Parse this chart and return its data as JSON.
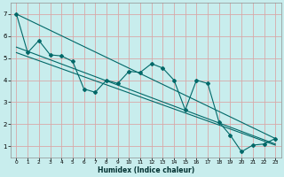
{
  "xlabel": "Humidex (Indice chaleur)",
  "bg_color": "#c8eded",
  "grid_color": "#d8a8a8",
  "line_color": "#006868",
  "marker_color": "#006868",
  "xlim": [
    -0.5,
    23.5
  ],
  "ylim": [
    0.5,
    7.5
  ],
  "yticks": [
    1,
    2,
    3,
    4,
    5,
    6,
    7
  ],
  "xticks": [
    0,
    1,
    2,
    3,
    4,
    5,
    6,
    7,
    8,
    9,
    10,
    11,
    12,
    13,
    14,
    15,
    16,
    17,
    18,
    19,
    20,
    21,
    22,
    23
  ],
  "series1_x": [
    0,
    1,
    2,
    3,
    4,
    5,
    6,
    7,
    8,
    9,
    10,
    11,
    12,
    13,
    14,
    15,
    16,
    17,
    18,
    19,
    20,
    21,
    22,
    23
  ],
  "series1_y": [
    7.0,
    5.25,
    5.8,
    5.15,
    5.1,
    4.85,
    3.6,
    3.45,
    4.0,
    3.85,
    4.4,
    4.35,
    4.75,
    4.55,
    4.0,
    2.65,
    4.0,
    3.85,
    2.1,
    1.5,
    0.75,
    1.05,
    1.1,
    1.35
  ],
  "series2_x": [
    0,
    23
  ],
  "series2_y": [
    7.0,
    1.35
  ],
  "series3_x": [
    0,
    23
  ],
  "series3_y": [
    5.25,
    1.05
  ],
  "series4_x": [
    0,
    23
  ],
  "series4_y": [
    5.5,
    1.1
  ]
}
